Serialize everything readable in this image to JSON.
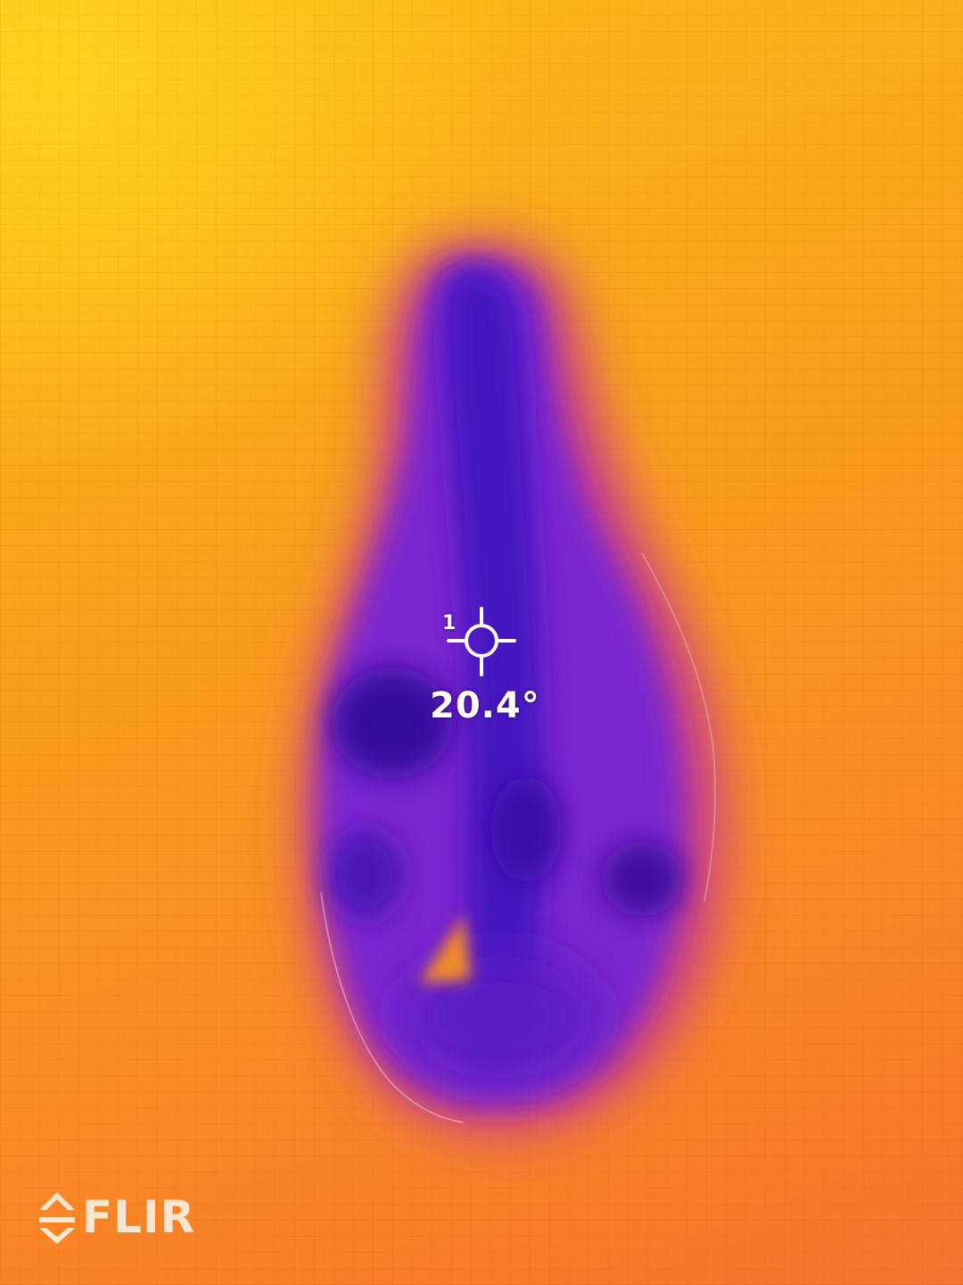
{
  "image": {
    "palette": {
      "hot": "#ffd21e",
      "warm": "#f9a31a",
      "mid": "#f7712c",
      "cool": "#8e2cd6",
      "cold": "#3d0fb5"
    }
  },
  "spot_meter": {
    "index": "1",
    "temperature": "20.4°",
    "icon": "crosshair-icon"
  },
  "brand": {
    "logo_text": "FLIR",
    "icon": "flir-diamond-icon"
  }
}
